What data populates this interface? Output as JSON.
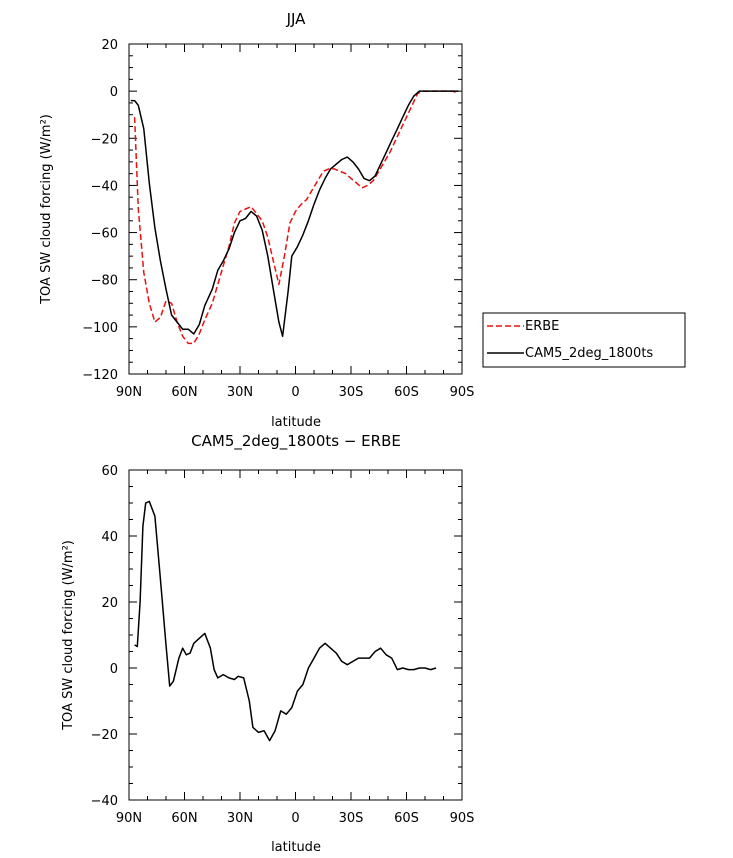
{
  "chart_data": [
    {
      "type": "line",
      "title": "JJA",
      "xlabel": "latitude",
      "ylabel": "TOA SW cloud forcing (W/m²)",
      "xlim": [
        90,
        -90
      ],
      "ylim": [
        -120,
        20
      ],
      "yticks": [
        20,
        0,
        -20,
        -40,
        -60,
        -80,
        -100,
        -120
      ],
      "xticks": [
        {
          "value": 90,
          "label": "90N"
        },
        {
          "value": 60,
          "label": "60N"
        },
        {
          "value": 30,
          "label": "30N"
        },
        {
          "value": 0,
          "label": "0"
        },
        {
          "value": -30,
          "label": "30S"
        },
        {
          "value": -60,
          "label": "60S"
        },
        {
          "value": -90,
          "label": "90S"
        }
      ],
      "legend": {
        "placement": "outside-right"
      },
      "series": [
        {
          "name": "ERBE",
          "color": "#e8110f",
          "dash": "dashed",
          "points": [
            [
              87,
              -11
            ],
            [
              85,
              -50
            ],
            [
              82,
              -77
            ],
            [
              79,
              -90
            ],
            [
              76,
              -98
            ],
            [
              73,
              -96
            ],
            [
              70,
              -89
            ],
            [
              67,
              -90
            ],
            [
              64,
              -98
            ],
            [
              61,
              -104
            ],
            [
              58,
              -107
            ],
            [
              55,
              -107
            ],
            [
              52,
              -103
            ],
            [
              49,
              -97
            ],
            [
              45,
              -90
            ],
            [
              42,
              -82
            ],
            [
              39,
              -74
            ],
            [
              36,
              -66
            ],
            [
              33,
              -56
            ],
            [
              30,
              -51
            ],
            [
              27,
              -50
            ],
            [
              24,
              -49
            ],
            [
              21,
              -52
            ],
            [
              18,
              -55
            ],
            [
              15,
              -62
            ],
            [
              12,
              -72
            ],
            [
              9,
              -82
            ],
            [
              6,
              -70
            ],
            [
              3,
              -56
            ],
            [
              0,
              -51
            ],
            [
              -3,
              -48
            ],
            [
              -6,
              -46
            ],
            [
              -9,
              -42
            ],
            [
              -12,
              -38
            ],
            [
              -15,
              -34
            ],
            [
              -18,
              -33
            ],
            [
              -21,
              -33
            ],
            [
              -24,
              -34
            ],
            [
              -27,
              -35
            ],
            [
              -30,
              -37
            ],
            [
              -33,
              -39
            ],
            [
              -36,
              -41
            ],
            [
              -39,
              -40
            ],
            [
              -42,
              -38
            ],
            [
              -45,
              -34
            ],
            [
              -48,
              -30
            ],
            [
              -51,
              -26
            ],
            [
              -54,
              -21
            ],
            [
              -57,
              -16
            ],
            [
              -60,
              -11
            ],
            [
              -63,
              -6
            ],
            [
              -66,
              -1
            ],
            [
              -69,
              0
            ],
            [
              -75,
              0
            ],
            [
              -80,
              0
            ],
            [
              -85,
              0
            ],
            [
              -88,
              -1
            ]
          ]
        },
        {
          "name": "CAM5_2deg_1800ts",
          "color": "#000000",
          "dash": "solid",
          "points": [
            [
              89,
              -4
            ],
            [
              87,
              -4
            ],
            [
              85,
              -6
            ],
            [
              82,
              -16
            ],
            [
              79,
              -39
            ],
            [
              76,
              -58
            ],
            [
              73,
              -72
            ],
            [
              70,
              -84
            ],
            [
              67,
              -95
            ],
            [
              64,
              -98
            ],
            [
              61,
              -101
            ],
            [
              58,
              -101
            ],
            [
              55,
              -103
            ],
            [
              52,
              -99
            ],
            [
              49,
              -91
            ],
            [
              45,
              -84
            ],
            [
              42,
              -76
            ],
            [
              39,
              -72
            ],
            [
              36,
              -67
            ],
            [
              33,
              -60
            ],
            [
              30,
              -55
            ],
            [
              27,
              -54
            ],
            [
              24,
              -51
            ],
            [
              21,
              -53
            ],
            [
              18,
              -59
            ],
            [
              15,
              -70
            ],
            [
              12,
              -84
            ],
            [
              9,
              -98
            ],
            [
              7,
              -104
            ],
            [
              4,
              -85
            ],
            [
              2,
              -70
            ],
            [
              -1,
              -66
            ],
            [
              -4,
              -61
            ],
            [
              -7,
              -55
            ],
            [
              -10,
              -48
            ],
            [
              -13,
              -42
            ],
            [
              -16,
              -37
            ],
            [
              -19,
              -33
            ],
            [
              -22,
              -31
            ],
            [
              -25,
              -29
            ],
            [
              -28,
              -28
            ],
            [
              -31,
              -30
            ],
            [
              -34,
              -33
            ],
            [
              -37,
              -37
            ],
            [
              -40,
              -38
            ],
            [
              -43,
              -36
            ],
            [
              -46,
              -31
            ],
            [
              -49,
              -26
            ],
            [
              -52,
              -21
            ],
            [
              -55,
              -16
            ],
            [
              -58,
              -11
            ],
            [
              -61,
              -6
            ],
            [
              -64,
              -2
            ],
            [
              -67,
              0
            ],
            [
              -70,
              0
            ],
            [
              -75,
              0
            ],
            [
              -80,
              0
            ],
            [
              -85,
              0
            ],
            [
              -88,
              0
            ]
          ]
        }
      ]
    },
    {
      "type": "line",
      "title": "CAM5_2deg_1800ts − ERBE",
      "xlabel": "latitude",
      "ylabel": "TOA SW cloud forcing (W/m²)",
      "xlim": [
        90,
        -90
      ],
      "ylim": [
        -40,
        60
      ],
      "yticks": [
        60,
        40,
        20,
        0,
        -20,
        -40
      ],
      "xticks": [
        {
          "value": 90,
          "label": "90N"
        },
        {
          "value": 60,
          "label": "60N"
        },
        {
          "value": 30,
          "label": "30N"
        },
        {
          "value": 0,
          "label": "0"
        },
        {
          "value": -30,
          "label": "30S"
        },
        {
          "value": -60,
          "label": "60S"
        },
        {
          "value": -90,
          "label": "90S"
        }
      ],
      "series": [
        {
          "name": "CAM5_2deg_1800ts - ERBE",
          "color": "#000000",
          "dash": "solid",
          "points": [
            [
              87,
              7
            ],
            [
              85.5,
              6.5
            ],
            [
              84,
              20
            ],
            [
              82.5,
              43
            ],
            [
              81,
              50
            ],
            [
              79,
              50.5
            ],
            [
              76,
              46
            ],
            [
              73,
              27
            ],
            [
              70,
              7
            ],
            [
              68,
              -5.5
            ],
            [
              66,
              -4
            ],
            [
              63,
              3
            ],
            [
              61,
              6
            ],
            [
              59,
              4
            ],
            [
              57,
              4.5
            ],
            [
              55,
              7.5
            ],
            [
              52,
              9
            ],
            [
              49,
              10.5
            ],
            [
              46,
              6
            ],
            [
              44,
              -0.5
            ],
            [
              42,
              -3
            ],
            [
              39,
              -2
            ],
            [
              36,
              -3
            ],
            [
              33,
              -3.5
            ],
            [
              31,
              -2.5
            ],
            [
              28,
              -3
            ],
            [
              25,
              -10
            ],
            [
              23,
              -18
            ],
            [
              20,
              -19.5
            ],
            [
              17,
              -19
            ],
            [
              14,
              -22
            ],
            [
              11,
              -19
            ],
            [
              8,
              -13
            ],
            [
              5,
              -14
            ],
            [
              2,
              -12
            ],
            [
              -1,
              -7
            ],
            [
              -4,
              -5
            ],
            [
              -7,
              0
            ],
            [
              -10,
              3
            ],
            [
              -13,
              6
            ],
            [
              -16,
              7.5
            ],
            [
              -19,
              6
            ],
            [
              -22,
              4.5
            ],
            [
              -25,
              2
            ],
            [
              -28,
              1
            ],
            [
              -31,
              2
            ],
            [
              -34,
              3
            ],
            [
              -37,
              3
            ],
            [
              -40,
              3
            ],
            [
              -43,
              5
            ],
            [
              -46,
              6
            ],
            [
              -49,
              4
            ],
            [
              -52,
              3
            ],
            [
              -55,
              -0.5
            ],
            [
              -58,
              0
            ],
            [
              -61,
              -0.5
            ],
            [
              -64,
              -0.5
            ],
            [
              -67,
              0
            ],
            [
              -70,
              0
            ],
            [
              -73,
              -0.5
            ],
            [
              -76,
              0
            ]
          ]
        }
      ]
    }
  ]
}
